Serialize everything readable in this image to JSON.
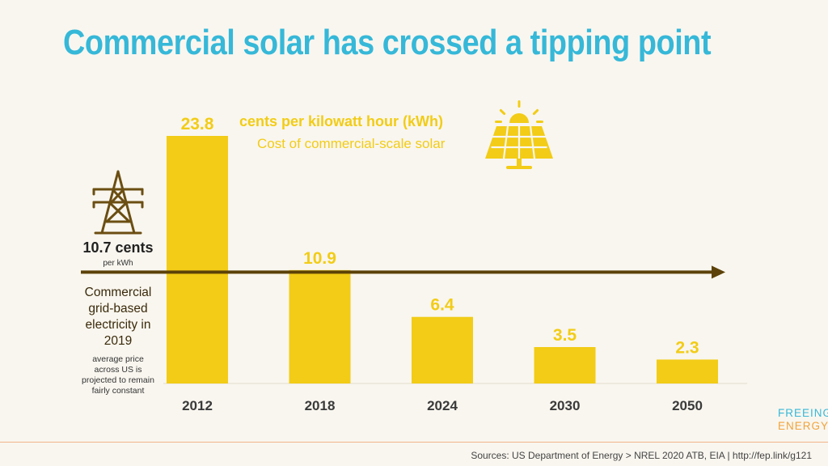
{
  "title": "Commercial solar has crossed a tipping point",
  "unit_title": "cents per kilowatt hour (kWh)",
  "unit_subtitle": "Cost of commercial-scale solar",
  "reference": {
    "value_label": "10.7 cents",
    "unit": "per kWh",
    "label": "Commercial grid-based electricity in 2019",
    "note": "average price across US is projected to remain fairly constant"
  },
  "brand": {
    "line1": "FREEING",
    "line2": "ENERGY"
  },
  "source": "Sources: US Department of Energy > NREL 2020 ATB, EIA | http://fep.link/g121",
  "icons": [
    "solar-panel-icon",
    "transmission-tower-icon"
  ],
  "colors": {
    "bar": "#f2cc16",
    "title": "#36b8d8",
    "reference_line": "#5c4208",
    "brand_accent": "#f2a33a"
  },
  "chart_data": {
    "type": "bar",
    "categories": [
      "2012",
      "2018",
      "2024",
      "2030",
      "2050"
    ],
    "values": [
      23.8,
      10.9,
      6.4,
      3.5,
      2.3
    ],
    "value_labels": [
      "23.8",
      "10.9",
      "6.4",
      "3.5",
      "2.3"
    ],
    "reference_line": 10.7,
    "title": "cents per kilowatt hour (kWh)",
    "subtitle": "Cost of commercial-scale solar",
    "ylim": [
      0,
      23.8
    ],
    "grid": false,
    "legend": "none"
  }
}
